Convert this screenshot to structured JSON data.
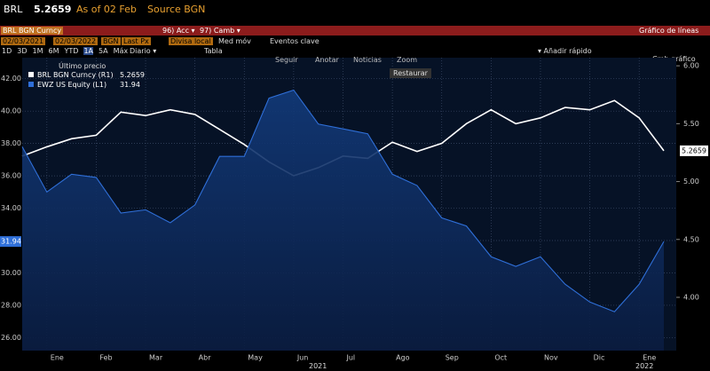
{
  "ui": {
    "ticker": "BRL",
    "as_of": "As of 02 Feb",
    "source": "Source BGN",
    "security": "BRL BGN Curncy",
    "menu_acc": "96) Acc ▾",
    "menu_camb": "97) Camb ▾",
    "chart_kind": "Gráfico de líneas",
    "start_date": "02/03/2021",
    "end_date": "02/03/2022",
    "src": "BGN",
    "field": "Last Px",
    "currency": "Divisa local",
    "moving_avg": "Med móv",
    "events": "Eventos clave",
    "periods": [
      "1D",
      "3D",
      "1M",
      "6M",
      "YTD",
      "1A",
      "5A",
      "Máx"
    ],
    "frequency": "Diario ▾",
    "table": "Tabla",
    "quick_add": "▾ Añadir rápido",
    "change_chart": "Cmb gráfico",
    "tools": [
      "Seguir",
      "Anotar",
      "Noticias",
      "Zoom"
    ],
    "restore": "Restaurar",
    "last_price": "Último precio",
    "years": [
      "2021",
      "2022"
    ]
  },
  "chart_data": {
    "type": "line",
    "categories": [
      null,
      "Ene",
      null,
      "Feb",
      null,
      "Mar",
      null,
      "Abr",
      null,
      "May",
      null,
      "Jun",
      null,
      "Jul",
      null,
      "Ago",
      null,
      "Sep",
      null,
      "Oct",
      null,
      "Nov",
      null,
      "Dic",
      null,
      "Ene",
      null
    ],
    "series": [
      {
        "name": "BRL BGN Curncy (R1)",
        "color": "#ffffff",
        "axis": "y2",
        "values": [
          5.22,
          5.3,
          5.37,
          5.4,
          5.6,
          5.57,
          5.62,
          5.58,
          5.45,
          5.32,
          5.17,
          5.05,
          5.12,
          5.22,
          5.2,
          5.34,
          5.26,
          5.33,
          5.5,
          5.62,
          5.5,
          5.55,
          5.64,
          5.62,
          5.7,
          5.55,
          5.2659
        ]
      },
      {
        "name": "EWZ US Equity (L1)",
        "color": "#2f6fd8",
        "values": [
          37.8,
          35.0,
          36.1,
          35.9,
          33.7,
          33.9,
          33.1,
          34.2,
          37.2,
          37.2,
          40.8,
          41.3,
          39.2,
          38.9,
          38.6,
          36.1,
          35.4,
          33.4,
          32.9,
          31.0,
          30.4,
          31.0,
          29.3,
          28.2,
          27.6,
          29.3,
          31.94
        ]
      }
    ],
    "ylim": [
      25.2,
      43.3
    ],
    "yticks": [
      {
        "value": 26,
        "label": "26.00"
      },
      {
        "value": 28,
        "label": "28.00"
      },
      {
        "value": 30,
        "label": "30.00"
      },
      {
        "value": 32,
        "label": "32.00"
      },
      {
        "value": 34,
        "label": "34.00"
      },
      {
        "value": 36,
        "label": "36.00"
      },
      {
        "value": 38,
        "label": "38.00"
      },
      {
        "value": 40,
        "label": "40.00"
      },
      {
        "value": 42,
        "label": "42.00"
      }
    ],
    "y2lim": [
      3.54,
      6.07
    ],
    "y2ticks": [
      {
        "value": 4,
        "label": "4.00"
      },
      {
        "value": 4.5,
        "label": "4.50"
      },
      {
        "value": 5,
        "label": "5.00"
      },
      {
        "value": 5.5,
        "label": "5.50"
      },
      {
        "value": 6,
        "label": "6.00"
      }
    ],
    "grid": true
  }
}
